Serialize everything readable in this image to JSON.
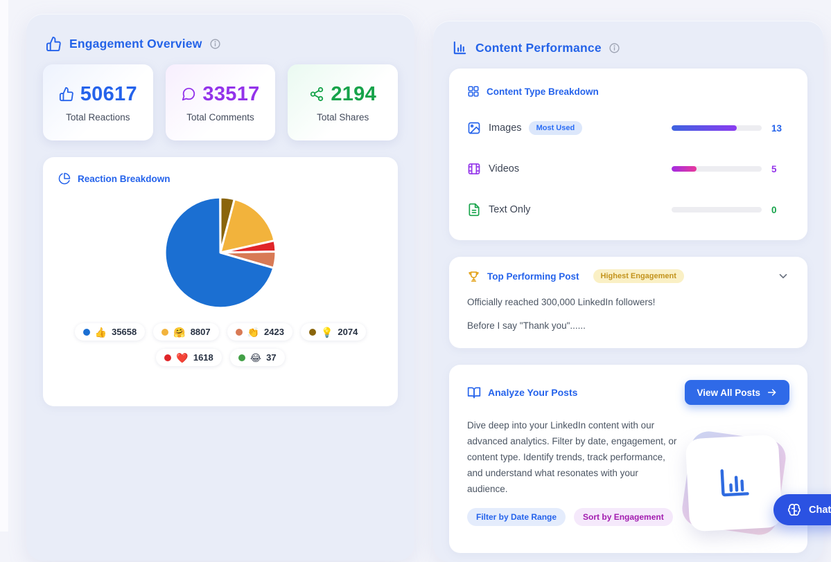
{
  "page": {
    "background": "#f3f4fa",
    "accent_blue": "#2563eb"
  },
  "engagement": {
    "title": "Engagement Overview",
    "stats": [
      {
        "label": "Total Reactions",
        "value": "50617",
        "color": "#2563eb",
        "icon": "thumbs-up-icon"
      },
      {
        "label": "Total Comments",
        "value": "33517",
        "color": "#9333ea",
        "icon": "comment-bubble-icon"
      },
      {
        "label": "Total Shares",
        "value": "2194",
        "color": "#16a34a",
        "icon": "share-nodes-icon"
      }
    ]
  },
  "chart_data": [
    {
      "type": "pie",
      "title": "Reaction Breakdown",
      "slices": [
        {
          "name": "like",
          "emoji": "👍",
          "value": 35658,
          "color": "#1b6fd2"
        },
        {
          "name": "support",
          "emoji": "🤗",
          "value": 8807,
          "color": "#f2b33c"
        },
        {
          "name": "celebrate",
          "emoji": "👏",
          "value": 2423,
          "color": "#d87a55"
        },
        {
          "name": "insightful",
          "emoji": "💡",
          "value": 2074,
          "color": "#8a650c"
        },
        {
          "name": "love",
          "emoji": "❤️",
          "value": 1618,
          "color": "#e02529"
        },
        {
          "name": "funny",
          "emoji": "😂",
          "value": 37,
          "color": "#43a047"
        }
      ],
      "draw_order_clockwise_from_top": [
        "insightful",
        "support",
        "love",
        "celebrate",
        "like",
        "funny"
      ],
      "slice_gap_color": "#ffffff",
      "legend_rows": [
        [
          "like",
          "support",
          "celebrate",
          "insightful"
        ],
        [
          "love",
          "funny"
        ]
      ],
      "legend_position": "bottom"
    },
    {
      "type": "bar",
      "title": "Content Type Breakdown",
      "total": 18,
      "rows": [
        {
          "label": "Images",
          "badge": "Most Used",
          "value": 13,
          "value_color": "#2563eb",
          "bar_gradient": [
            "#3e63e0",
            "#8b3cf0"
          ],
          "icon": "image-icon"
        },
        {
          "label": "Videos",
          "badge": "",
          "value": 5,
          "value_color": "#9333ea",
          "bar_gradient": [
            "#a32ce2",
            "#e8399b"
          ],
          "icon": "film-icon"
        },
        {
          "label": "Text Only",
          "badge": "",
          "value": 0,
          "value_color": "#16a34a",
          "bar_gradient": null,
          "icon": "file-text-icon"
        }
      ],
      "track_color": "#ededf1"
    }
  ],
  "content_performance": {
    "title": "Content Performance",
    "top_post": {
      "title": "Top Performing Post",
      "badge": "Highest Engagement",
      "badge_bg": "#faf0c5",
      "badge_color": "#c3931d",
      "line1": "Officially reached 300,000 LinkedIn followers!",
      "line2": "Before I say \"Thank you\"......"
    },
    "analyze": {
      "title": "Analyze Your Posts",
      "button": "View All Posts",
      "description": "Dive deep into your LinkedIn content with our advanced analytics. Filter by date, engagement, or content type. Identify trends, track performance, and understand what resonates with your audience.",
      "tags": [
        {
          "label": "Filter by Date Range",
          "bg": "#e4ecfc",
          "color": "#2563eb"
        },
        {
          "label": "Sort by Engagement",
          "bg": "#f5e9fb",
          "color": "#a21caf"
        }
      ]
    }
  },
  "chat": {
    "label": "Chat",
    "color": "#2b52e2"
  }
}
